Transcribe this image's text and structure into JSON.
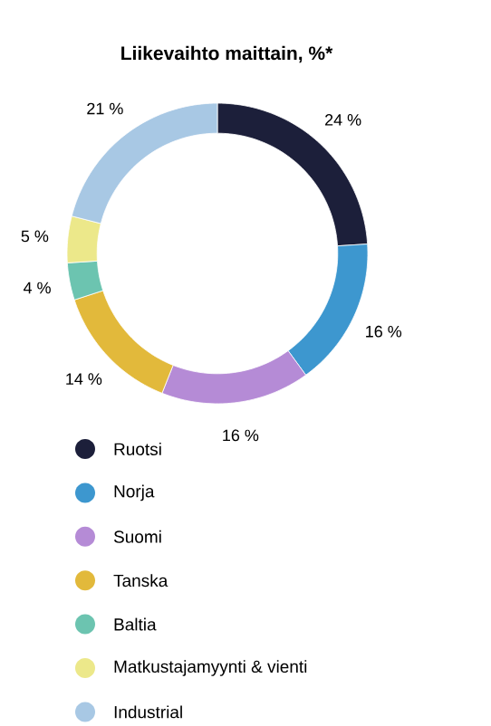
{
  "chart_data": {
    "type": "donut",
    "title": "Liikevaihto maittain, %*",
    "categories": [
      "Ruotsi",
      "Norja",
      "Suomi",
      "Tanska",
      "Baltia",
      "Matkustajamyynti & vienti",
      "Industrial"
    ],
    "values": [
      24,
      16,
      16,
      14,
      4,
      5,
      21
    ],
    "value_labels": [
      "24 %",
      "16 %",
      "16 %",
      "14 %",
      "4 %",
      "5 %",
      "21 %"
    ],
    "colors": [
      "#1c1f3a",
      "#3d97cf",
      "#b58bd6",
      "#e2b93b",
      "#6cc4b0",
      "#ece88a",
      "#a8c8e4"
    ],
    "legend": "bottom"
  }
}
